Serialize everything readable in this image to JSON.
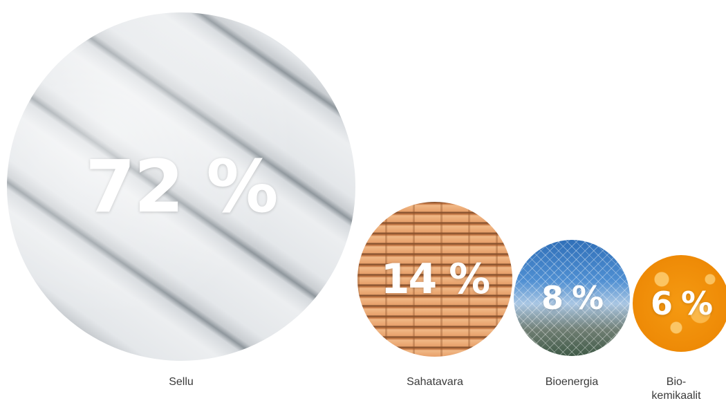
{
  "chart_data": {
    "type": "bubble",
    "title": "",
    "categories": [
      "Sellu",
      "Sahatavara",
      "Bioenergia",
      "Bio-\nkemikaalit"
    ],
    "values": [
      72,
      14,
      8,
      6
    ],
    "value_labels": [
      "72 %",
      "14 %",
      "8 %",
      "6 %"
    ],
    "unit": "%"
  },
  "colors": {
    "label_text": "#3a3a3a",
    "value_text": "#ffffff",
    "background": "#ffffff"
  }
}
